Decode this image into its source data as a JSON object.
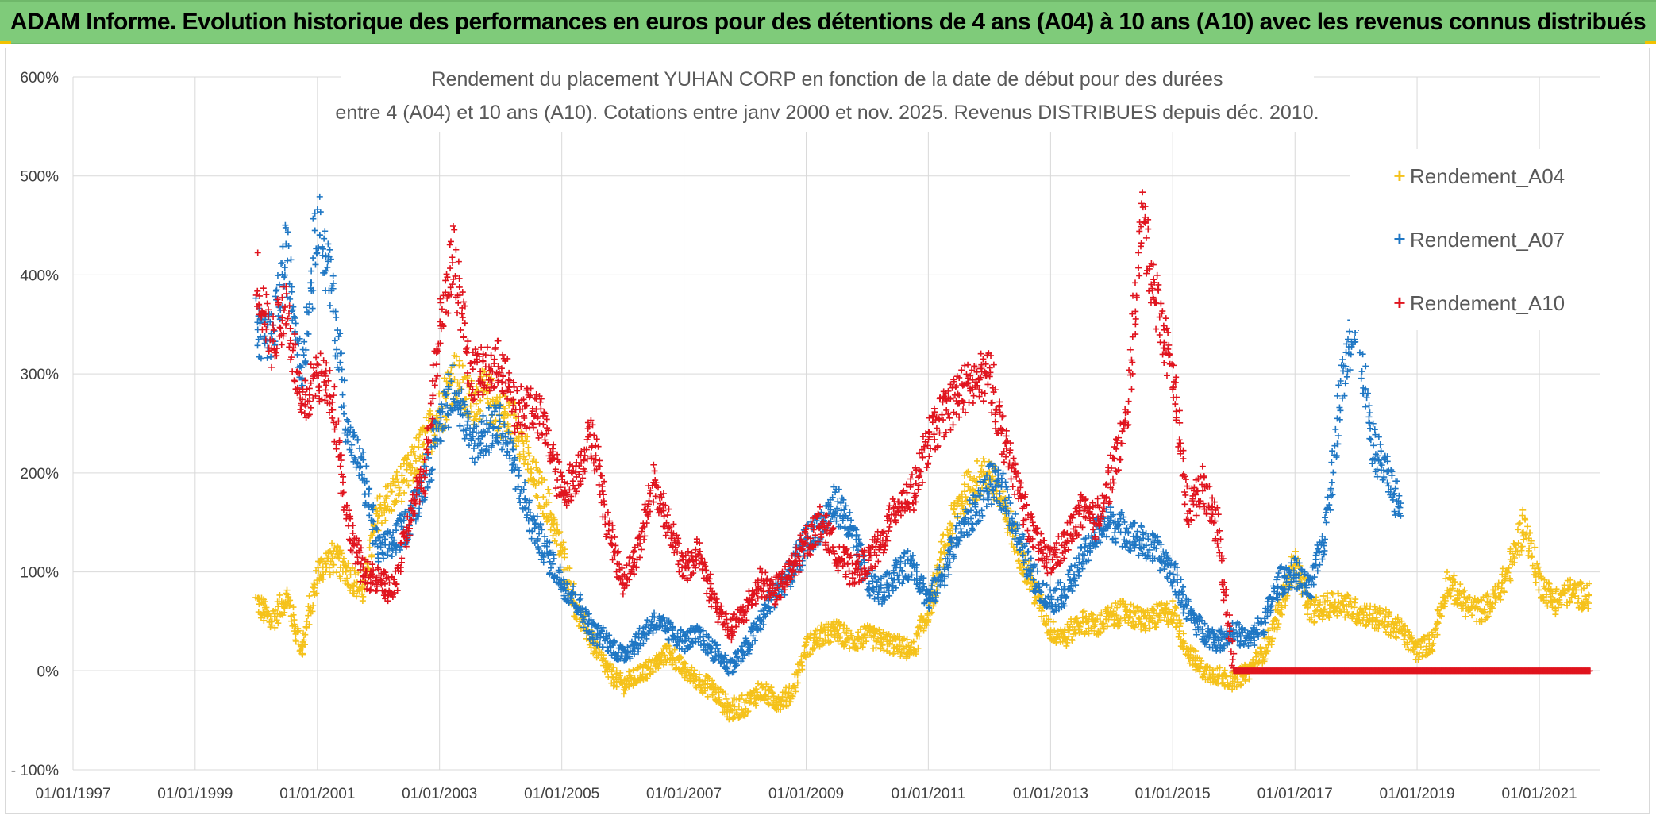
{
  "header": {
    "banner_title": "ADAM Informe. Evolution historique des performances en euros pour des détentions de 4 ans (A04) à 10 ans (A10) avec les revenus connus distribués"
  },
  "colors": {
    "banner": "#7fcb7a",
    "A04": "#f5c21b",
    "A07": "#1f77c4",
    "A10": "#e0141e",
    "grid": "#d9d9d9"
  },
  "chart_data": {
    "type": "scatter",
    "title_line1": "Rendement du placement YUHAN CORP en fonction de la date de début pour des durées",
    "title_line2": "entre 4 (A04) et 10 ans (A10). Cotations entre janv 2000 et nov. 2025. Revenus DISTRIBUES depuis déc. 2010.",
    "xlabel": "",
    "ylabel": "",
    "x_axis": {
      "type": "date",
      "min": "1997-01-01",
      "max": "2022-01-01"
    },
    "y_axis": {
      "min": -100,
      "max": 600,
      "unit": "%"
    },
    "x_tick_labels": [
      "01/01/1997",
      "01/01/1999",
      "01/01/2001",
      "01/01/2003",
      "01/01/2005",
      "01/01/2007",
      "01/01/2009",
      "01/01/2011",
      "01/01/2013",
      "01/01/2015",
      "01/01/2017",
      "01/01/2019",
      "01/01/2021"
    ],
    "y_tick_labels": [
      "- 100%",
      "0%",
      "100%",
      "200%",
      "300%",
      "400%",
      "500%",
      "600%"
    ],
    "grid": true,
    "legend_position": "top-right",
    "marker": "+",
    "series": [
      {
        "name": "Rendement_A04",
        "color": "#f5c21b",
        "x_range": [
          "2000-01-01",
          "2021-11-01"
        ],
        "points": [
          [
            "2000-01-01",
            70
          ],
          [
            "2000-04-01",
            50
          ],
          [
            "2000-07-01",
            75
          ],
          [
            "2000-10-01",
            20
          ],
          [
            "2001-01-01",
            100
          ],
          [
            "2001-04-01",
            115
          ],
          [
            "2001-07-01",
            100
          ],
          [
            "2001-10-01",
            80
          ],
          [
            "2002-01-01",
            160
          ],
          [
            "2002-04-01",
            180
          ],
          [
            "2002-07-01",
            200
          ],
          [
            "2002-10-01",
            230
          ],
          [
            "2003-01-01",
            260
          ],
          [
            "2003-04-01",
            300
          ],
          [
            "2003-07-01",
            270
          ],
          [
            "2003-10-01",
            280
          ],
          [
            "2004-01-01",
            260
          ],
          [
            "2004-04-01",
            250
          ],
          [
            "2004-07-01",
            200
          ],
          [
            "2004-10-01",
            170
          ],
          [
            "2005-01-01",
            120
          ],
          [
            "2005-04-01",
            60
          ],
          [
            "2005-07-01",
            30
          ],
          [
            "2005-10-01",
            0
          ],
          [
            "2006-01-01",
            -15
          ],
          [
            "2006-04-01",
            -5
          ],
          [
            "2006-07-01",
            5
          ],
          [
            "2006-10-01",
            20
          ],
          [
            "2007-01-01",
            0
          ],
          [
            "2007-04-01",
            -10
          ],
          [
            "2007-07-01",
            -20
          ],
          [
            "2007-10-01",
            -40
          ],
          [
            "2008-01-01",
            -35
          ],
          [
            "2008-04-01",
            -20
          ],
          [
            "2008-07-01",
            -30
          ],
          [
            "2008-10-01",
            -25
          ],
          [
            "2009-01-01",
            25
          ],
          [
            "2009-04-01",
            35
          ],
          [
            "2009-07-01",
            40
          ],
          [
            "2009-10-01",
            30
          ],
          [
            "2010-01-01",
            35
          ],
          [
            "2010-04-01",
            30
          ],
          [
            "2010-07-01",
            25
          ],
          [
            "2010-10-01",
            20
          ],
          [
            "2011-01-01",
            60
          ],
          [
            "2011-04-01",
            120
          ],
          [
            "2011-07-01",
            170
          ],
          [
            "2011-10-01",
            190
          ],
          [
            "2012-01-01",
            200
          ],
          [
            "2012-04-01",
            160
          ],
          [
            "2012-07-01",
            120
          ],
          [
            "2012-10-01",
            80
          ],
          [
            "2013-01-01",
            40
          ],
          [
            "2013-04-01",
            35
          ],
          [
            "2013-07-01",
            50
          ],
          [
            "2013-10-01",
            45
          ],
          [
            "2014-01-01",
            55
          ],
          [
            "2014-04-01",
            60
          ],
          [
            "2014-07-01",
            50
          ],
          [
            "2014-10-01",
            55
          ],
          [
            "2015-01-01",
            60
          ],
          [
            "2015-04-01",
            20
          ],
          [
            "2015-07-01",
            0
          ],
          [
            "2015-10-01",
            -5
          ],
          [
            "2016-01-01",
            -10
          ],
          [
            "2016-04-01",
            0
          ],
          [
            "2016-07-01",
            20
          ],
          [
            "2016-10-01",
            60
          ],
          [
            "2017-01-01",
            110
          ],
          [
            "2017-04-01",
            60
          ],
          [
            "2017-07-01",
            65
          ],
          [
            "2017-10-01",
            70
          ],
          [
            "2018-01-01",
            60
          ],
          [
            "2018-04-01",
            55
          ],
          [
            "2018-07-01",
            50
          ],
          [
            "2018-10-01",
            40
          ],
          [
            "2019-01-01",
            20
          ],
          [
            "2019-04-01",
            30
          ],
          [
            "2019-07-01",
            90
          ],
          [
            "2019-10-01",
            70
          ],
          [
            "2020-01-01",
            60
          ],
          [
            "2020-04-01",
            70
          ],
          [
            "2020-07-01",
            100
          ],
          [
            "2020-10-01",
            150
          ],
          [
            "2021-01-01",
            90
          ],
          [
            "2021-04-01",
            70
          ],
          [
            "2021-07-01",
            80
          ],
          [
            "2021-10-01",
            75
          ]
        ]
      },
      {
        "name": "Rendement_A07",
        "color": "#1f77c4",
        "x_range": [
          "2000-01-01",
          "2018-10-01"
        ],
        "points": [
          [
            "2000-01-01",
            350
          ],
          [
            "2000-04-01",
            330
          ],
          [
            "2000-07-01",
            420
          ],
          [
            "2000-10-01",
            300
          ],
          [
            "2001-01-01",
            460
          ],
          [
            "2001-04-01",
            380
          ],
          [
            "2001-07-01",
            240
          ],
          [
            "2001-10-01",
            200
          ],
          [
            "2002-01-01",
            120
          ],
          [
            "2002-04-01",
            130
          ],
          [
            "2002-07-01",
            150
          ],
          [
            "2002-10-01",
            190
          ],
          [
            "2003-01-01",
            250
          ],
          [
            "2003-04-01",
            290
          ],
          [
            "2003-07-01",
            230
          ],
          [
            "2003-10-01",
            240
          ],
          [
            "2004-01-01",
            250
          ],
          [
            "2004-04-01",
            200
          ],
          [
            "2004-07-01",
            150
          ],
          [
            "2004-10-01",
            120
          ],
          [
            "2005-01-01",
            90
          ],
          [
            "2005-04-01",
            70
          ],
          [
            "2005-07-01",
            40
          ],
          [
            "2005-10-01",
            30
          ],
          [
            "2006-01-01",
            15
          ],
          [
            "2006-04-01",
            30
          ],
          [
            "2006-07-01",
            50
          ],
          [
            "2006-10-01",
            40
          ],
          [
            "2007-01-01",
            30
          ],
          [
            "2007-04-01",
            35
          ],
          [
            "2007-07-01",
            20
          ],
          [
            "2007-10-01",
            5
          ],
          [
            "2008-01-01",
            20
          ],
          [
            "2008-04-01",
            50
          ],
          [
            "2008-07-01",
            80
          ],
          [
            "2008-10-01",
            100
          ],
          [
            "2009-01-01",
            130
          ],
          [
            "2009-04-01",
            150
          ],
          [
            "2009-07-01",
            170
          ],
          [
            "2009-10-01",
            140
          ],
          [
            "2010-01-01",
            90
          ],
          [
            "2010-04-01",
            80
          ],
          [
            "2010-07-01",
            100
          ],
          [
            "2010-10-01",
            110
          ],
          [
            "2011-01-01",
            70
          ],
          [
            "2011-04-01",
            100
          ],
          [
            "2011-07-01",
            140
          ],
          [
            "2011-10-01",
            160
          ],
          [
            "2012-01-01",
            190
          ],
          [
            "2012-04-01",
            180
          ],
          [
            "2012-07-01",
            130
          ],
          [
            "2012-10-01",
            90
          ],
          [
            "2013-01-01",
            70
          ],
          [
            "2013-04-01",
            80
          ],
          [
            "2013-07-01",
            110
          ],
          [
            "2013-10-01",
            140
          ],
          [
            "2014-01-01",
            150
          ],
          [
            "2014-04-01",
            140
          ],
          [
            "2014-07-01",
            130
          ],
          [
            "2014-10-01",
            120
          ],
          [
            "2015-01-01",
            100
          ],
          [
            "2015-04-01",
            60
          ],
          [
            "2015-07-01",
            40
          ],
          [
            "2015-10-01",
            30
          ],
          [
            "2016-01-01",
            40
          ],
          [
            "2016-04-01",
            30
          ],
          [
            "2016-07-01",
            50
          ],
          [
            "2016-10-01",
            90
          ],
          [
            "2017-01-01",
            100
          ],
          [
            "2017-04-01",
            80
          ],
          [
            "2017-07-01",
            140
          ],
          [
            "2017-10-01",
            280
          ],
          [
            "2018-01-01",
            370
          ],
          [
            "2018-04-01",
            230
          ],
          [
            "2018-07-01",
            200
          ],
          [
            "2018-10-01",
            160
          ]
        ]
      },
      {
        "name": "Rendement_A10",
        "color": "#e0141e",
        "x_range": [
          "2000-01-01",
          "2021-11-01"
        ],
        "points": [
          [
            "2000-01-01",
            400
          ],
          [
            "2000-04-01",
            330
          ],
          [
            "2000-07-01",
            370
          ],
          [
            "2000-10-01",
            260
          ],
          [
            "2001-01-01",
            300
          ],
          [
            "2001-04-01",
            280
          ],
          [
            "2001-07-01",
            150
          ],
          [
            "2001-10-01",
            100
          ],
          [
            "2002-01-01",
            90
          ],
          [
            "2002-04-01",
            80
          ],
          [
            "2002-07-01",
            150
          ],
          [
            "2002-10-01",
            200
          ],
          [
            "2003-01-01",
            350
          ],
          [
            "2003-04-01",
            420
          ],
          [
            "2003-07-01",
            300
          ],
          [
            "2003-10-01",
            300
          ],
          [
            "2004-01-01",
            310
          ],
          [
            "2004-04-01",
            260
          ],
          [
            "2004-07-01",
            270
          ],
          [
            "2004-10-01",
            240
          ],
          [
            "2005-01-01",
            180
          ],
          [
            "2005-04-01",
            200
          ],
          [
            "2005-07-01",
            240
          ],
          [
            "2005-10-01",
            150
          ],
          [
            "2006-01-01",
            90
          ],
          [
            "2006-04-01",
            120
          ],
          [
            "2006-07-01",
            190
          ],
          [
            "2006-10-01",
            150
          ],
          [
            "2007-01-01",
            100
          ],
          [
            "2007-04-01",
            120
          ],
          [
            "2007-07-01",
            70
          ],
          [
            "2007-10-01",
            40
          ],
          [
            "2008-01-01",
            60
          ],
          [
            "2008-04-01",
            90
          ],
          [
            "2008-07-01",
            80
          ],
          [
            "2008-10-01",
            100
          ],
          [
            "2009-01-01",
            130
          ],
          [
            "2009-04-01",
            150
          ],
          [
            "2009-07-01",
            120
          ],
          [
            "2009-10-01",
            100
          ],
          [
            "2010-01-01",
            110
          ],
          [
            "2010-04-01",
            130
          ],
          [
            "2010-07-01",
            170
          ],
          [
            "2010-10-01",
            180
          ],
          [
            "2011-01-01",
            230
          ],
          [
            "2011-04-01",
            260
          ],
          [
            "2011-07-01",
            280
          ],
          [
            "2011-10-01",
            290
          ],
          [
            "2012-01-01",
            300
          ],
          [
            "2012-04-01",
            230
          ],
          [
            "2012-07-01",
            180
          ],
          [
            "2012-10-01",
            130
          ],
          [
            "2013-01-01",
            110
          ],
          [
            "2013-04-01",
            130
          ],
          [
            "2013-07-01",
            160
          ],
          [
            "2013-10-01",
            150
          ],
          [
            "2014-01-01",
            200
          ],
          [
            "2014-04-01",
            250
          ],
          [
            "2014-07-01",
            460
          ],
          [
            "2014-10-01",
            370
          ],
          [
            "2015-01-01",
            300
          ],
          [
            "2015-04-01",
            160
          ],
          [
            "2015-07-01",
            190
          ],
          [
            "2015-10-01",
            140
          ],
          [
            "2016-01-01",
            0
          ],
          [
            "2016-07-01",
            0
          ],
          [
            "2017-01-01",
            0
          ],
          [
            "2017-07-01",
            0
          ],
          [
            "2018-01-01",
            0
          ],
          [
            "2018-07-01",
            0
          ],
          [
            "2019-01-01",
            0
          ],
          [
            "2019-07-01",
            0
          ],
          [
            "2020-01-01",
            0
          ],
          [
            "2020-07-01",
            0
          ],
          [
            "2021-01-01",
            0
          ],
          [
            "2021-07-01",
            0
          ],
          [
            "2021-11-01",
            0
          ]
        ]
      }
    ]
  }
}
